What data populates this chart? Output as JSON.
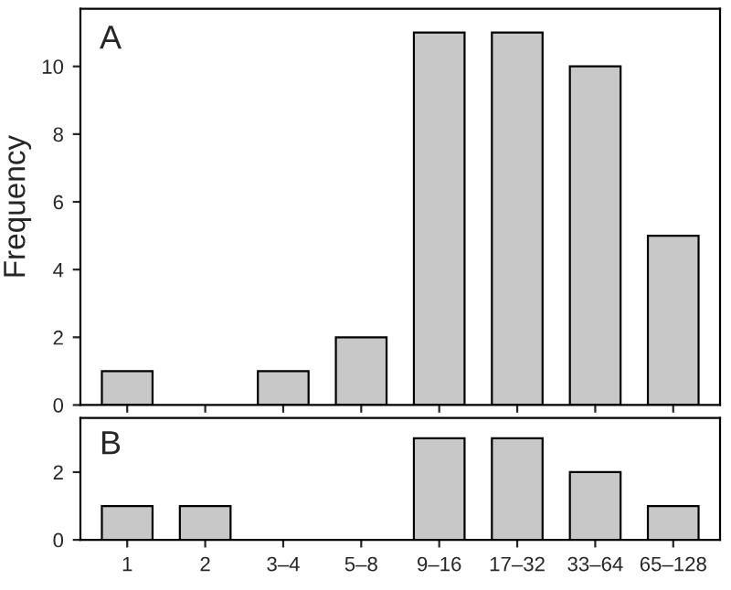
{
  "chart_data": [
    {
      "type": "bar",
      "ylabel": "Frequency",
      "annotations": [
        "A"
      ],
      "categories": [
        null,
        null,
        null,
        null,
        null,
        null,
        null,
        null
      ],
      "values": [
        1,
        0,
        1,
        2,
        11,
        11,
        10,
        5
      ],
      "color": "#c8c8c8",
      "ylim": [
        0,
        11.7
      ],
      "yticks": [
        0,
        2,
        4,
        6,
        8,
        10
      ],
      "tick_labels": "y",
      "grid": false
    },
    {
      "type": "bar",
      "annotations": [
        "B"
      ],
      "categories": [
        "1",
        "2",
        "3–4",
        "5–8",
        "9–16",
        "17–32",
        "33–64",
        "65–128"
      ],
      "values": [
        1,
        1,
        0,
        0,
        3,
        3,
        2,
        1
      ],
      "color": "#c8c8c8",
      "ylim": [
        0,
        3.6
      ],
      "yticks": [
        0,
        2
      ],
      "grid": false
    }
  ]
}
